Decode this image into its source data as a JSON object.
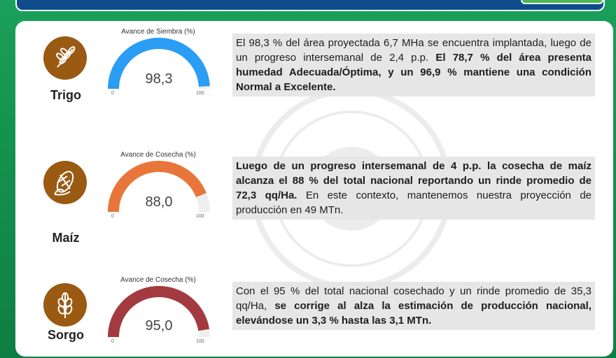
{
  "crops": [
    {
      "name": "Trigo",
      "icon": "wheat-icon",
      "gauge_title": "Avance de Siembra (%)",
      "value_label": "98,3",
      "value": 98.3,
      "min_label": "0",
      "max_label": "100",
      "color": "#2a9df4",
      "text_normal": "El 98,3 % del área proyectada 6,7 MHa se encuentra implantada, luego de un progreso intersemanal de 2,4 p.p. ",
      "text_bold": "El 78,7 % del área presenta humedad Adecuada/Óptima, y un 96,9 % mantiene una condición Normal a Excelente.",
      "text_after": ""
    },
    {
      "name": "Maíz",
      "icon": "corn-icon",
      "gauge_title": "Avance de Cosecha (%)",
      "value_label": "88,0",
      "value": 88.0,
      "min_label": "0",
      "max_label": "100",
      "color": "#e8763a",
      "text_normal": "",
      "text_bold": "Luego de un progreso intersemanal de 4 p.p. la cosecha de maíz alcanza el 88 % del total nacional reportando un rinde promedio de 72,3 qq/Ha.",
      "text_after": " En este contexto, mantenemos nuestra proyección de producción en 49 MTn."
    },
    {
      "name": "Sorgo",
      "icon": "sorghum-icon",
      "gauge_title": "Avance de Cosecha (%)",
      "value_label": "95,0",
      "value": 95.0,
      "min_label": "0",
      "max_label": "100",
      "color": "#a33a3f",
      "text_normal": "Con el 95 % del total nacional cosechado y un rinde promedio de 35,3 qq/Ha, ",
      "text_bold": "se corrige al alza la estimación de producción nacional, elevándose un 3,3 % hasta las 3,1 MTn.",
      "text_after": ""
    }
  ],
  "colors": {
    "icon_bg": "#9a5a12",
    "track": "#efefef",
    "text_box_bg": "#e6e6e6"
  }
}
